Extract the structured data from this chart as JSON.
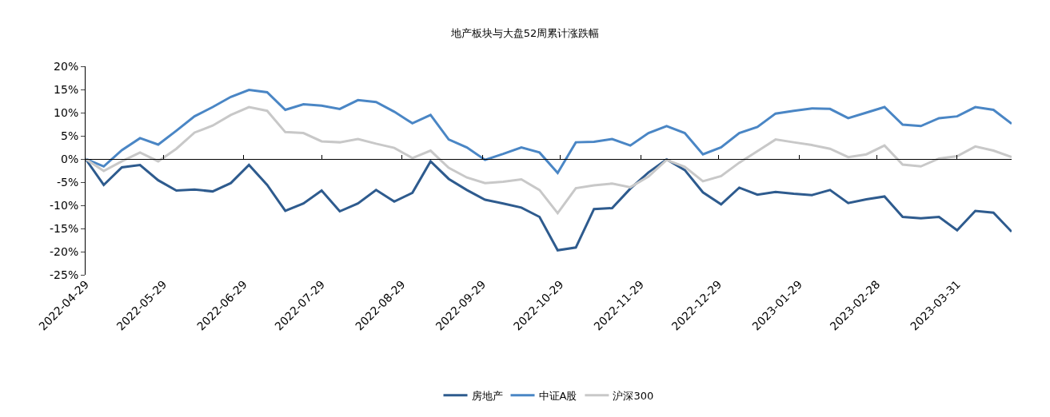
{
  "chart_data": {
    "type": "line",
    "title": "地产板块与大盘52周累计涨跌幅",
    "x": [
      "2022-04-29",
      "2022-05-06",
      "2022-05-13",
      "2022-05-20",
      "2022-05-27",
      "2022-06-03",
      "2022-06-10",
      "2022-06-17",
      "2022-06-24",
      "2022-07-01",
      "2022-07-08",
      "2022-07-15",
      "2022-07-22",
      "2022-07-29",
      "2022-08-05",
      "2022-08-12",
      "2022-08-19",
      "2022-08-26",
      "2022-09-02",
      "2022-09-09",
      "2022-09-16",
      "2022-09-23",
      "2022-09-30",
      "2022-10-07",
      "2022-10-14",
      "2022-10-21",
      "2022-10-28",
      "2022-11-04",
      "2022-11-11",
      "2022-11-18",
      "2022-11-25",
      "2022-12-02",
      "2022-12-09",
      "2022-12-16",
      "2022-12-23",
      "2022-12-30",
      "2023-01-06",
      "2023-01-13",
      "2023-01-20",
      "2023-01-27",
      "2023-02-03",
      "2023-02-10",
      "2023-02-17",
      "2023-02-24",
      "2023-03-03",
      "2023-03-10",
      "2023-03-17",
      "2023-03-24",
      "2023-03-31",
      "2023-04-07",
      "2023-04-14",
      "2023-04-21"
    ],
    "series": [
      {
        "name": "房地产",
        "color": "#2e5b8e",
        "values": [
          0,
          -5.6,
          -1.8,
          -1.3,
          -4.6,
          -6.8,
          -6.6,
          -7.0,
          -5.2,
          -1.3,
          -5.6,
          -11.2,
          -9.6,
          -6.8,
          -11.3,
          -9.6,
          -6.7,
          -9.2,
          -7.3,
          -0.5,
          -4.3,
          -6.7,
          -8.8,
          -9.6,
          -10.5,
          -12.5,
          -19.7,
          -19.1,
          -10.8,
          -10.6,
          -6.4,
          -2.9,
          -0.1,
          -2.4,
          -7.2,
          -9.8,
          -6.2,
          -7.7,
          -7.1,
          -7.5,
          -7.8,
          -6.7,
          -9.5,
          -8.7,
          -8.1,
          -12.5,
          -12.8,
          -12.5,
          -15.4,
          -11.2,
          -11.6,
          -15.7
        ]
      },
      {
        "name": "中证A股",
        "color": "#4a86c5",
        "values": [
          0,
          -1.6,
          1.9,
          4.5,
          3.1,
          6.1,
          9.2,
          11.2,
          13.4,
          14.9,
          14.4,
          10.6,
          11.8,
          11.5,
          10.8,
          12.7,
          12.3,
          10.2,
          7.7,
          9.5,
          4.2,
          2.5,
          -0.2,
          1.1,
          2.5,
          1.4,
          -3.0,
          3.6,
          3.7,
          4.3,
          2.9,
          5.6,
          7.1,
          5.6,
          1.0,
          2.5,
          5.6,
          6.9,
          9.8,
          10.4,
          10.9,
          10.8,
          8.8,
          10.0,
          11.2,
          7.4,
          7.1,
          8.8,
          9.2,
          11.2,
          10.6,
          7.6
        ]
      },
      {
        "name": "沪深300",
        "color": "#c8c8c8",
        "values": [
          0,
          -2.6,
          -0.5,
          1.4,
          -0.5,
          2.2,
          5.7,
          7.2,
          9.5,
          11.2,
          10.4,
          5.8,
          5.6,
          3.8,
          3.6,
          4.3,
          3.3,
          2.4,
          0.2,
          1.8,
          -1.9,
          -4.0,
          -5.2,
          -4.9,
          -4.4,
          -6.7,
          -11.7,
          -6.3,
          -5.7,
          -5.3,
          -6.1,
          -3.8,
          -0.2,
          -1.7,
          -4.8,
          -3.7,
          -0.8,
          1.7,
          4.2,
          3.6,
          3.0,
          2.2,
          0.4,
          1.0,
          2.9,
          -1.2,
          -1.6,
          0.1,
          0.6,
          2.7,
          1.8,
          0.4
        ]
      }
    ],
    "xlim": [
      "2022-04-29",
      "2023-04-21"
    ],
    "xticks": [
      "2022-04-29",
      "2022-05-29",
      "2022-06-29",
      "2022-07-29",
      "2022-08-29",
      "2022-09-29",
      "2022-10-29",
      "2022-11-29",
      "2022-12-29",
      "2023-01-29",
      "2023-02-28",
      "2023-03-31"
    ],
    "ylim": [
      -25,
      20
    ],
    "yticks": [
      {
        "value": -25,
        "label": "-25%"
      },
      {
        "value": -20,
        "label": "-20%"
      },
      {
        "value": -15,
        "label": "-15%"
      },
      {
        "value": -10,
        "label": "-10%"
      },
      {
        "value": -5,
        "label": "-5%"
      },
      {
        "value": 0,
        "label": "0%"
      },
      {
        "value": 5,
        "label": "5%"
      },
      {
        "value": 10,
        "label": "10%"
      },
      {
        "value": 15,
        "label": "15%"
      },
      {
        "value": 20,
        "label": "20%"
      }
    ],
    "legend": "bottom",
    "marker": "none",
    "line_style": "solid"
  }
}
